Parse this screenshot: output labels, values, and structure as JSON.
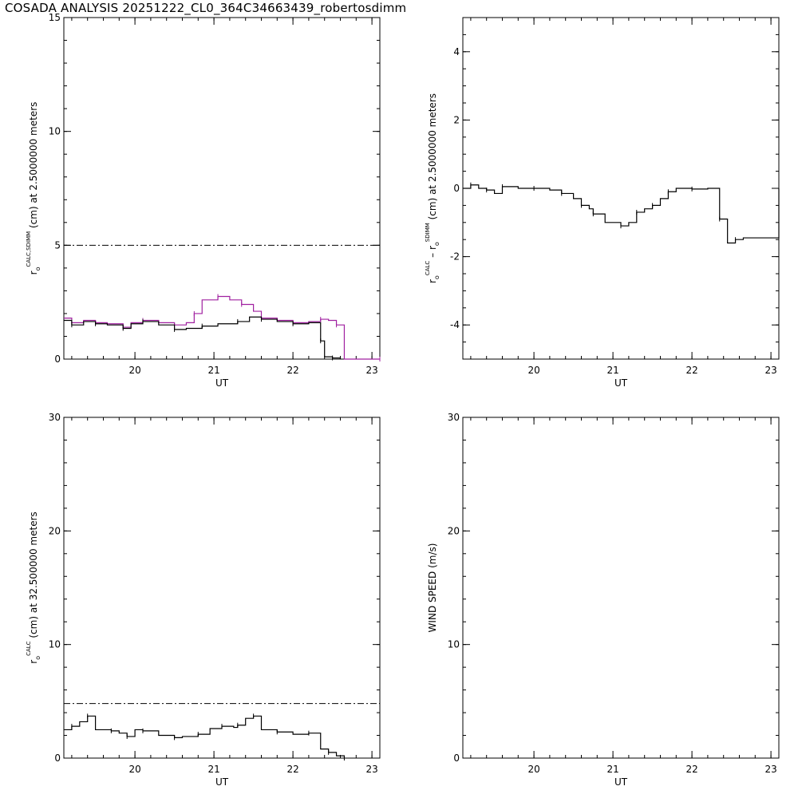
{
  "page": {
    "title": "COSADA ANALYSIS 20251222_CL0_364C34663439_robertosdimm"
  },
  "colors": {
    "axis": "#000000",
    "sdimm_series": "#000000",
    "calc_series": "#a020a0"
  },
  "chart_data": [
    {
      "id": "top-left",
      "type": "line",
      "title": "",
      "xlabel": "UT",
      "ylabel_parts": [
        "r",
        "o",
        "CALC,SDIMM",
        "(cm)  at  2.5000000 meters"
      ],
      "xlim": [
        19.1,
        23.1
      ],
      "ylim": [
        0,
        15
      ],
      "xticks": [
        20,
        21,
        22,
        23
      ],
      "yticks": [
        0,
        5,
        10,
        15
      ],
      "reference_line": 5,
      "series": [
        {
          "color": "#a020a0",
          "x": [
            19.1,
            19.2,
            19.35,
            19.5,
            19.65,
            19.85,
            19.95,
            20.1,
            20.3,
            20.5,
            20.65,
            20.75,
            20.85,
            21.05,
            21.2,
            21.35,
            21.5,
            21.6,
            21.8,
            22.0,
            22.2,
            22.35,
            22.45,
            22.55,
            22.65,
            23.1
          ],
          "y": [
            1.8,
            1.6,
            1.7,
            1.6,
            1.55,
            1.4,
            1.6,
            1.7,
            1.6,
            1.5,
            1.6,
            2.0,
            2.6,
            2.75,
            2.6,
            2.4,
            2.1,
            1.8,
            1.7,
            1.6,
            1.65,
            1.75,
            1.7,
            1.5,
            0.0,
            0.0
          ]
        },
        {
          "color": "#000000",
          "x": [
            19.1,
            19.2,
            19.35,
            19.5,
            19.65,
            19.85,
            19.95,
            20.1,
            20.3,
            20.5,
            20.65,
            20.85,
            21.05,
            21.3,
            21.45,
            21.6,
            21.8,
            22.0,
            22.2,
            22.35,
            22.4,
            22.5,
            22.6
          ],
          "y": [
            1.7,
            1.5,
            1.65,
            1.55,
            1.5,
            1.35,
            1.55,
            1.65,
            1.5,
            1.3,
            1.35,
            1.45,
            1.55,
            1.65,
            1.85,
            1.75,
            1.65,
            1.55,
            1.6,
            0.8,
            0.1,
            0.05,
            0.0
          ]
        }
      ]
    },
    {
      "id": "top-right",
      "type": "line",
      "title": "",
      "xlabel": "UT",
      "ylabel_parts": [
        "r",
        "o",
        "CALC",
        "  –  r",
        "o",
        "SDIMM",
        "(cm)  at  2.5000000 meters"
      ],
      "xlim": [
        19.1,
        23.1
      ],
      "ylim": [
        -5,
        5
      ],
      "xticks": [
        20,
        21,
        22,
        23
      ],
      "yticks": [
        -4,
        -2,
        0,
        2,
        4
      ],
      "series": [
        {
          "color": "#000000",
          "x": [
            19.1,
            19.2,
            19.3,
            19.4,
            19.5,
            19.6,
            19.8,
            20.0,
            20.2,
            20.35,
            20.5,
            20.6,
            20.7,
            20.75,
            20.9,
            21.1,
            21.2,
            21.3,
            21.4,
            21.5,
            21.6,
            21.7,
            21.8,
            22.0,
            22.2,
            22.35,
            22.45,
            22.55,
            22.65,
            23.1
          ],
          "y": [
            0.0,
            0.1,
            0.0,
            -0.05,
            -0.15,
            0.05,
            0.0,
            0.0,
            -0.05,
            -0.15,
            -0.3,
            -0.5,
            -0.6,
            -0.75,
            -1.0,
            -1.1,
            -1.0,
            -0.7,
            -0.6,
            -0.5,
            -0.3,
            -0.1,
            0.0,
            -0.02,
            0.0,
            -0.9,
            -1.6,
            -1.5,
            -1.45,
            0.0
          ]
        }
      ]
    },
    {
      "id": "bottom-left",
      "type": "line",
      "title": "",
      "xlabel": "UT",
      "ylabel_parts": [
        "r",
        "o",
        "CALC",
        "(cm)  at  32.500000 meters"
      ],
      "xlim": [
        19.1,
        23.1
      ],
      "ylim": [
        0,
        30
      ],
      "xticks": [
        20,
        21,
        22,
        23
      ],
      "yticks": [
        0,
        10,
        20,
        30
      ],
      "reference_line": 4.8,
      "series": [
        {
          "color": "#000000",
          "x": [
            19.1,
            19.2,
            19.3,
            19.4,
            19.5,
            19.7,
            19.8,
            19.9,
            20.0,
            20.1,
            20.3,
            20.5,
            20.6,
            20.8,
            20.95,
            21.1,
            21.25,
            21.3,
            21.4,
            21.5,
            21.6,
            21.8,
            22.0,
            22.2,
            22.35,
            22.45,
            22.55,
            22.65
          ],
          "y": [
            2.5,
            2.8,
            3.2,
            3.7,
            2.5,
            2.4,
            2.2,
            1.9,
            2.5,
            2.4,
            2.0,
            1.8,
            1.9,
            2.1,
            2.6,
            2.8,
            2.7,
            2.9,
            3.5,
            3.7,
            2.5,
            2.3,
            2.1,
            2.2,
            0.8,
            0.5,
            0.2,
            0.0
          ]
        }
      ]
    },
    {
      "id": "bottom-right",
      "type": "line",
      "title": "",
      "xlabel": "UT",
      "ylabel_parts": [
        "WIND SPEED  (m/s)"
      ],
      "xlim": [
        19.1,
        23.1
      ],
      "ylim": [
        0,
        30
      ],
      "xticks": [
        20,
        21,
        22,
        23
      ],
      "yticks": [
        0,
        10,
        20,
        30
      ],
      "series": []
    }
  ]
}
